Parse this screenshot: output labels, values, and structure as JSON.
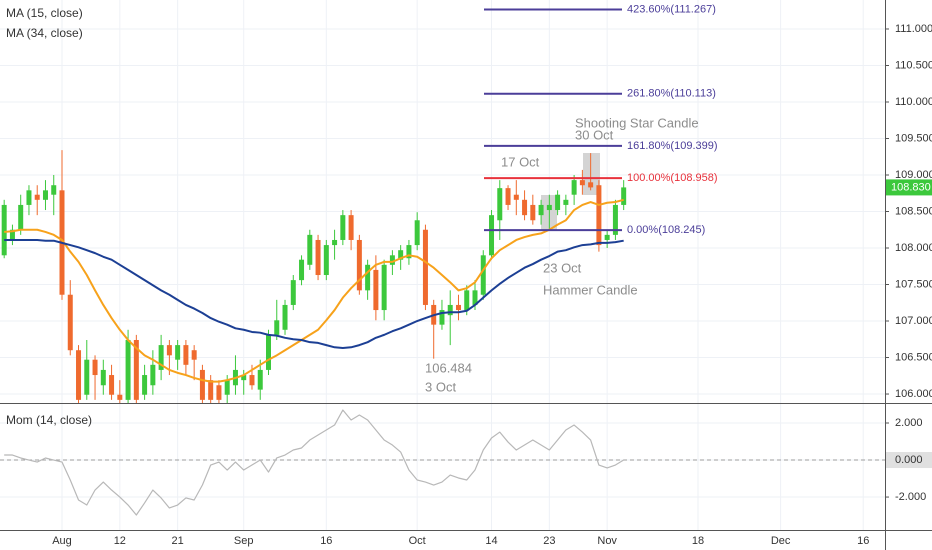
{
  "chart_data": [
    {
      "type": "candlestick",
      "categories": [
        null,
        null,
        null,
        null,
        null,
        null,
        null,
        "Aug",
        null,
        null,
        null,
        null,
        null,
        null,
        "12",
        null,
        null,
        null,
        null,
        null,
        null,
        "21",
        null,
        null,
        null,
        null,
        null,
        null,
        null,
        "Sep",
        null,
        null,
        null,
        null,
        null,
        null,
        null,
        null,
        null,
        "16",
        null,
        null,
        null,
        null,
        null,
        null,
        null,
        null,
        null,
        null,
        "Oct",
        null,
        null,
        null,
        null,
        null,
        null,
        null,
        null,
        "14",
        null,
        null,
        null,
        null,
        null,
        null,
        "23",
        null,
        null,
        null,
        null,
        null,
        null,
        "Nov",
        null,
        null,
        null,
        null,
        null,
        null,
        null,
        null,
        null,
        null,
        "18",
        null,
        null,
        null,
        null,
        null,
        null,
        null,
        null,
        null,
        "Dec",
        null,
        null,
        null,
        null,
        null,
        null,
        null,
        null,
        null,
        "16",
        null,
        null
      ],
      "open": [
        107.9,
        108.11,
        108.25,
        108.59,
        108.73,
        108.66,
        108.73,
        108.79,
        107.36,
        106.6,
        105.99,
        106.47,
        106.12,
        106.26,
        105.99,
        105.92,
        106.74,
        105.99,
        106.12,
        106.33,
        106.67,
        106.47,
        106.67,
        106.6,
        106.33,
        106.19,
        106.12,
        105.99,
        106.12,
        106.19,
        106.26,
        106.06,
        106.33,
        106.81,
        106.88,
        107.22,
        107.56,
        107.77,
        108.11,
        107.63,
        108.04,
        108.11,
        108.45,
        108.11,
        107.42,
        107.7,
        107.15,
        107.77,
        107.84,
        107.86,
        108.04,
        108.25,
        107.22,
        106.95,
        107.08,
        107.22,
        107.15,
        107.22,
        107.36,
        107.9,
        108.38,
        108.82,
        108.73,
        108.66,
        108.59,
        108.45,
        108.52,
        108.52,
        108.59,
        108.73,
        108.93,
        108.9,
        108.86,
        108.11,
        108.18,
        108.59,
        null,
        null,
        null,
        null,
        null,
        null,
        null,
        null,
        null,
        null,
        null,
        null,
        null,
        null,
        null,
        null,
        null,
        null,
        null,
        null,
        null,
        null,
        null,
        null,
        null,
        null,
        null,
        null,
        null,
        null,
        null
      ],
      "high": [
        108.66,
        108.32,
        108.73,
        108.86,
        108.86,
        108.93,
        109.0,
        109.34,
        107.56,
        106.67,
        106.74,
        106.53,
        106.47,
        106.4,
        106.19,
        106.88,
        106.81,
        106.4,
        106.6,
        106.81,
        106.74,
        106.74,
        106.74,
        106.67,
        106.4,
        106.26,
        106.19,
        106.26,
        106.53,
        106.33,
        106.4,
        106.47,
        106.88,
        107.29,
        107.29,
        107.63,
        107.9,
        108.25,
        108.18,
        108.11,
        108.25,
        108.52,
        108.52,
        108.18,
        107.84,
        107.9,
        107.84,
        107.97,
        108.04,
        108.11,
        108.49,
        108.32,
        107.29,
        107.29,
        107.42,
        107.36,
        107.49,
        107.56,
        107.97,
        108.52,
        108.93,
        108.86,
        108.93,
        108.79,
        108.73,
        108.66,
        108.73,
        108.79,
        108.73,
        109.0,
        109.07,
        109.3,
        108.93,
        108.25,
        108.66,
        108.93,
        null,
        null,
        null,
        null,
        null,
        null,
        null,
        null,
        null,
        null,
        null,
        null,
        null,
        null,
        null,
        null,
        null,
        null,
        null,
        null,
        null,
        null,
        null,
        null,
        null,
        null,
        null,
        null,
        null,
        null,
        null
      ],
      "low": [
        107.86,
        108.04,
        108.18,
        108.45,
        108.45,
        108.52,
        108.45,
        107.29,
        106.53,
        105.85,
        105.92,
        105.92,
        105.99,
        105.92,
        105.85,
        105.85,
        105.85,
        105.92,
        105.99,
        106.19,
        106.26,
        106.33,
        106.26,
        106.19,
        105.85,
        105.85,
        105.85,
        105.85,
        105.99,
        105.99,
        106.06,
        105.92,
        106.26,
        106.74,
        106.81,
        107.15,
        107.49,
        107.7,
        107.56,
        107.56,
        107.84,
        108.04,
        107.97,
        107.36,
        107.29,
        107.01,
        107.01,
        107.63,
        107.7,
        107.77,
        107.97,
        107.15,
        106.484,
        106.88,
        106.67,
        107.01,
        107.08,
        107.15,
        107.29,
        107.84,
        108.11,
        108.52,
        108.45,
        108.38,
        108.32,
        108.32,
        108.245,
        108.45,
        108.45,
        108.59,
        108.73,
        108.79,
        107.95,
        108.0,
        108.11,
        108.52,
        null,
        null,
        null,
        null,
        null,
        null,
        null,
        null,
        null,
        null,
        null,
        null,
        null,
        null,
        null,
        null,
        null,
        null,
        null,
        null,
        null,
        null,
        null,
        null,
        null,
        null,
        null,
        null,
        null,
        null,
        null
      ],
      "close": [
        108.59,
        108.25,
        108.59,
        108.79,
        108.66,
        108.79,
        108.86,
        107.36,
        106.6,
        105.92,
        106.47,
        106.26,
        106.33,
        105.99,
        105.92,
        106.74,
        105.92,
        106.26,
        106.4,
        106.67,
        106.53,
        106.67,
        106.4,
        106.47,
        105.92,
        105.92,
        105.92,
        106.19,
        106.33,
        106.26,
        106.12,
        106.33,
        106.81,
        107.01,
        107.22,
        107.56,
        107.84,
        108.18,
        107.63,
        108.04,
        108.11,
        108.45,
        108.11,
        107.42,
        107.77,
        107.15,
        107.77,
        107.9,
        107.97,
        108.04,
        108.38,
        107.22,
        106.95,
        107.15,
        107.22,
        107.15,
        107.42,
        107.42,
        107.9,
        108.45,
        108.82,
        108.59,
        108.66,
        108.45,
        108.38,
        108.59,
        108.59,
        108.73,
        108.66,
        108.93,
        108.86,
        108.83,
        108.04,
        108.18,
        108.59,
        108.83,
        null,
        null,
        null,
        null,
        null,
        null,
        null,
        null,
        null,
        null,
        null,
        null,
        null,
        null,
        null,
        null,
        null,
        null,
        null,
        null,
        null,
        null,
        null,
        null,
        null,
        null,
        null,
        null,
        null,
        null,
        null
      ],
      "up_color": "#3cc83c",
      "down_color": "#ef6a2e",
      "series": [
        {
          "name": "MA (15, close)",
          "color": "#f7a21b",
          "values": [
            108.22,
            108.23,
            108.25,
            108.25,
            108.25,
            108.22,
            108.18,
            108.11,
            107.95,
            107.81,
            107.63,
            107.42,
            107.22,
            107.04,
            106.88,
            106.74,
            106.63,
            106.53,
            106.47,
            106.4,
            106.33,
            106.29,
            106.26,
            106.22,
            106.19,
            106.17,
            106.17,
            106.19,
            106.22,
            106.26,
            106.33,
            106.4,
            106.47,
            106.53,
            106.6,
            106.67,
            106.74,
            106.81,
            106.88,
            107.01,
            107.15,
            107.32,
            107.45,
            107.56,
            107.67,
            107.77,
            107.81,
            107.81,
            107.86,
            107.9,
            107.88,
            107.81,
            107.73,
            107.63,
            107.53,
            107.42,
            107.45,
            107.53,
            107.7,
            107.86,
            107.97,
            108.04,
            108.11,
            108.15,
            108.18,
            108.2,
            108.25,
            108.32,
            108.38,
            108.52,
            108.59,
            108.63,
            108.59,
            108.62,
            108.63,
            108.66,
            null,
            null,
            null,
            null,
            null,
            null,
            null,
            null,
            null,
            null,
            null,
            null,
            null,
            null,
            null,
            null,
            null,
            null,
            null,
            null,
            null,
            null,
            null,
            null,
            null,
            null,
            null,
            null,
            null,
            null,
            null
          ]
        },
        {
          "name": "MA (34, close)",
          "color": "#1c3f94",
          "values": [
            108.11,
            108.11,
            108.11,
            108.11,
            108.11,
            108.1,
            108.1,
            108.07,
            108.04,
            108.01,
            107.97,
            107.93,
            107.88,
            107.84,
            107.77,
            107.7,
            107.63,
            107.56,
            107.49,
            107.42,
            107.36,
            107.29,
            107.22,
            107.17,
            107.11,
            107.04,
            106.99,
            106.95,
            106.9,
            106.88,
            106.85,
            106.84,
            106.81,
            106.8,
            106.77,
            106.75,
            106.74,
            106.71,
            106.7,
            106.67,
            106.64,
            106.63,
            106.64,
            106.67,
            106.71,
            106.77,
            106.81,
            106.86,
            106.9,
            106.95,
            107.0,
            107.04,
            107.08,
            107.11,
            107.12,
            107.12,
            107.14,
            107.22,
            107.32,
            107.42,
            107.51,
            107.59,
            107.66,
            107.73,
            107.78,
            107.84,
            107.89,
            107.95,
            107.97,
            108.01,
            108.04,
            108.05,
            108.07,
            108.07,
            108.08,
            108.1,
            null,
            null,
            null,
            null,
            null,
            null,
            null,
            null,
            null,
            null,
            null,
            null,
            null,
            null,
            null,
            null,
            null,
            null,
            null,
            null,
            null,
            null,
            null,
            null,
            null,
            null,
            null,
            null,
            null,
            null,
            null
          ]
        }
      ],
      "ylim": [
        105.877,
        111.397
      ],
      "yticks": [
        {
          "value": 106,
          "label": "106.000"
        },
        {
          "value": 106.5,
          "label": "106.500"
        },
        {
          "value": 107,
          "label": "107.000"
        },
        {
          "value": 107.5,
          "label": "107.500"
        },
        {
          "value": 108,
          "label": "108.000"
        },
        {
          "value": 108.5,
          "label": "108.500"
        },
        {
          "value": 109,
          "label": "109.000"
        },
        {
          "value": 109.5,
          "label": "109.500"
        },
        {
          "value": 110,
          "label": "110.000"
        },
        {
          "value": 110.5,
          "label": "110.500"
        },
        {
          "value": 111,
          "label": "111.000"
        }
      ],
      "grid": true,
      "last_price": {
        "value": 108.83,
        "label": "108.830",
        "color": "#3cc83c"
      },
      "fibonacci": [
        {
          "value": 111.267,
          "label": "423.60%(111.267)",
          "color": "#4b3e99"
        },
        {
          "value": 110.113,
          "label": "261.80%(110.113)",
          "color": "#4b3e99"
        },
        {
          "value": 109.399,
          "label": "161.80%(109.399)",
          "color": "#4b3e99"
        },
        {
          "value": 108.958,
          "label": "100.00%(108.958)",
          "color": "#e8323c"
        },
        {
          "value": 108.245,
          "label": "0.00%(108.245)",
          "color": "#4b3e99"
        }
      ],
      "annotations": [
        "Shooting Star Candle",
        "30 Oct",
        "17 Oct",
        "23 Oct",
        "Hammer Candle",
        "106.484",
        "3 Oct"
      ]
    },
    {
      "type": "line",
      "series": [
        {
          "name": "Mom (14, close)",
          "color": "#b8b8b8",
          "values": [
            0.27,
            0.27,
            0.11,
            0,
            -0.11,
            0.11,
            0,
            -0.11,
            -1.08,
            -2.16,
            -2.43,
            -1.62,
            -1.19,
            -1.62,
            -2.0,
            -2.43,
            -2.97,
            -2.32,
            -1.62,
            -2.05,
            -2.59,
            -2.43,
            -2.05,
            -2.16,
            -1.35,
            -0.27,
            -0.11,
            -0.54,
            -0.11,
            -0.54,
            -0.27,
            0,
            -0.65,
            0.11,
            0.27,
            0.54,
            0.65,
            1.08,
            1.35,
            1.62,
            1.89,
            2.7,
            2.16,
            2.43,
            2.16,
            1.62,
            1.08,
            0.81,
            0.43,
            -0.54,
            -1.08,
            -1.19,
            -1.35,
            -1.19,
            -0.81,
            -0.97,
            -1.08,
            -0.54,
            0.54,
            1.19,
            1.51,
            0.97,
            0.54,
            0.81,
            1.08,
            0.81,
            0.54,
            1.08,
            1.62,
            1.89,
            1.51,
            1.08,
            -0.27,
            -0.43,
            -0.27,
            0,
            null,
            null,
            null,
            null,
            null,
            null,
            null,
            null,
            null,
            null,
            null,
            null,
            null,
            null,
            null,
            null,
            null,
            null,
            null,
            null,
            null,
            null,
            null,
            null,
            null,
            null,
            null,
            null,
            null,
            null,
            null
          ]
        }
      ],
      "ylim": [
        -3.78,
        3.08
      ],
      "yticks": [
        {
          "value": 2,
          "label": "2.000"
        },
        {
          "value": 0,
          "label": "0.000"
        },
        {
          "value": -2,
          "label": "-2.000"
        }
      ],
      "baseline": 0,
      "last_value": {
        "value": 0,
        "label": "0.000"
      }
    }
  ]
}
